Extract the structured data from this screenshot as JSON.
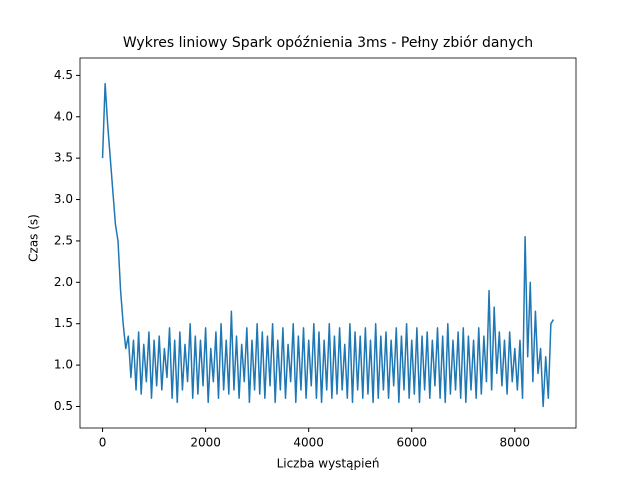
{
  "chart_data": {
    "type": "line",
    "title": "Wykres liniowy Spark opóźnienia 3ms - Pełny zbiór danych",
    "xlabel": "Liczba wystąpień",
    "ylabel": "Czas (s)",
    "color": "#1f77b4",
    "grid": false,
    "xlim": [
      -437.5,
      9187.5
    ],
    "ylim": [
      0.24,
      4.71
    ],
    "xticks": [
      0,
      2000,
      4000,
      6000,
      8000
    ],
    "yticks": [
      0.5,
      {
        "value": 1,
        "label": "1.0"
      },
      1.5,
      {
        "value": 2,
        "label": "2.0"
      },
      2.5,
      {
        "value": 3,
        "label": "3.0"
      },
      3.5,
      {
        "value": 4,
        "label": "4.0"
      },
      4.5
    ],
    "x": [
      0,
      50,
      100,
      150,
      200,
      250,
      300,
      350,
      400,
      450,
      500,
      550,
      600,
      650,
      700,
      750,
      800,
      850,
      900,
      950,
      1000,
      1050,
      1100,
      1150,
      1200,
      1250,
      1300,
      1350,
      1400,
      1450,
      1500,
      1550,
      1600,
      1650,
      1700,
      1750,
      1800,
      1850,
      1900,
      1950,
      2000,
      2050,
      2100,
      2150,
      2200,
      2250,
      2300,
      2350,
      2400,
      2450,
      2500,
      2550,
      2600,
      2650,
      2700,
      2750,
      2800,
      2850,
      2900,
      2950,
      3000,
      3050,
      3100,
      3150,
      3200,
      3250,
      3300,
      3350,
      3400,
      3450,
      3500,
      3550,
      3600,
      3650,
      3700,
      3750,
      3800,
      3850,
      3900,
      3950,
      4000,
      4050,
      4100,
      4150,
      4200,
      4250,
      4300,
      4350,
      4400,
      4450,
      4500,
      4550,
      4600,
      4650,
      4700,
      4750,
      4800,
      4850,
      4900,
      4950,
      5000,
      5050,
      5100,
      5150,
      5200,
      5250,
      5300,
      5350,
      5400,
      5450,
      5500,
      5550,
      5600,
      5650,
      5700,
      5750,
      5800,
      5850,
      5900,
      5950,
      6000,
      6050,
      6100,
      6150,
      6200,
      6250,
      6300,
      6350,
      6400,
      6450,
      6500,
      6550,
      6600,
      6650,
      6700,
      6750,
      6800,
      6850,
      6900,
      6950,
      7000,
      7050,
      7100,
      7150,
      7200,
      7250,
      7300,
      7350,
      7400,
      7450,
      7500,
      7550,
      7600,
      7650,
      7700,
      7750,
      7800,
      7850,
      7900,
      7950,
      8000,
      8050,
      8100,
      8150,
      8200,
      8250,
      8300,
      8350,
      8400,
      8450,
      8500,
      8550,
      8600,
      8650,
      8700,
      8750
    ],
    "values": [
      3.5,
      4.4,
      3.9,
      3.5,
      3.1,
      2.7,
      2.5,
      1.9,
      1.5,
      1.2,
      1.35,
      0.85,
      1.3,
      0.7,
      1.4,
      0.65,
      1.25,
      0.8,
      1.4,
      0.6,
      1.3,
      0.75,
      1.35,
      0.7,
      1.2,
      0.85,
      1.45,
      0.6,
      1.3,
      0.55,
      1.4,
      0.7,
      1.25,
      0.8,
      1.5,
      0.6,
      1.35,
      0.65,
      1.3,
      0.75,
      1.45,
      0.55,
      1.2,
      0.8,
      1.4,
      0.6,
      1.5,
      0.7,
      1.3,
      0.65,
      1.65,
      0.7,
      1.35,
      0.6,
      1.25,
      0.8,
      1.45,
      0.55,
      1.3,
      0.7,
      1.5,
      0.65,
      1.4,
      0.6,
      1.35,
      0.75,
      1.5,
      0.55,
      1.3,
      0.7,
      1.45,
      0.6,
      1.25,
      0.8,
      1.5,
      0.55,
      1.35,
      0.7,
      1.45,
      0.6,
      1.3,
      0.75,
      1.5,
      0.6,
      1.4,
      0.55,
      1.3,
      0.7,
      1.5,
      0.6,
      1.35,
      0.65,
      1.45,
      0.7,
      1.25,
      0.6,
      1.5,
      0.55,
      1.4,
      0.7,
      1.35,
      0.6,
      1.45,
      0.65,
      1.3,
      0.55,
      1.5,
      0.6,
      1.35,
      0.7,
      1.4,
      0.6,
      1.3,
      0.75,
      1.45,
      0.55,
      1.35,
      0.7,
      1.5,
      0.6,
      1.3,
      0.65,
      1.45,
      0.55,
      1.35,
      0.7,
      1.4,
      0.6,
      1.3,
      0.75,
      1.45,
      0.6,
      1.35,
      0.55,
      1.5,
      0.65,
      1.3,
      0.7,
      1.4,
      0.6,
      1.45,
      0.55,
      1.35,
      0.7,
      1.3,
      0.6,
      1.45,
      0.65,
      1.35,
      0.8,
      1.9,
      0.7,
      1.7,
      0.9,
      1.4,
      0.75,
      1.3,
      0.65,
      1.4,
      0.8,
      1.2,
      0.7,
      1.3,
      0.6,
      2.55,
      1.1,
      2.0,
      0.8,
      1.65,
      0.9,
      1.2,
      0.5,
      1.1,
      0.6,
      1.5,
      1.55
    ]
  }
}
